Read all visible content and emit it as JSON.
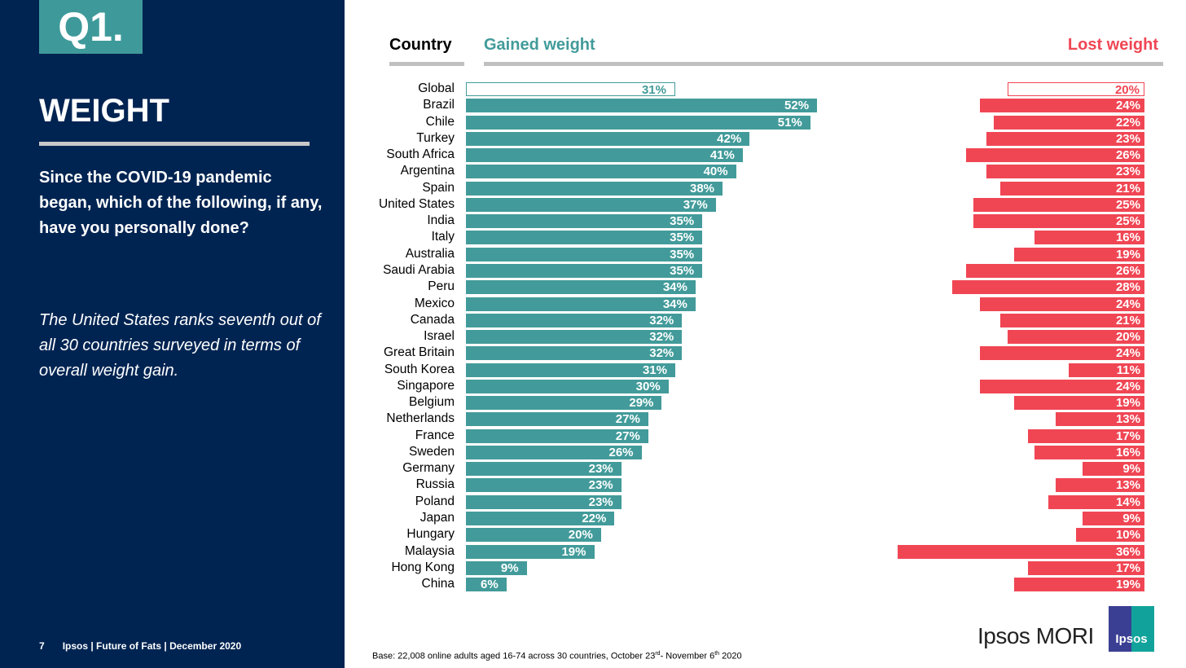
{
  "sidebar": {
    "badge": "Q1.",
    "title": "WEIGHT",
    "question": "Since the COVID-19 pandemic began, which of the following, if any, have you personally done?",
    "note": "The United States ranks seventh out of all 30 countries surveyed in terms of overall weight gain.",
    "footer": {
      "page": "7",
      "text": "Ipsos | Future of Fats | December 2020"
    }
  },
  "footer": {
    "base": "Base: 22,008 online adults aged 16-74 across 30 countries, October 23",
    "sup1": "rd",
    "mid": "- November 6",
    "sup2": "th",
    "end": " 2020",
    "logo_text": "Ipsos MORI",
    "logo_badge": "Ipsos"
  },
  "chart_data": {
    "type": "bar",
    "orientation": "horizontal",
    "colors": {
      "gained": "#429b9a",
      "lost": "#f04654"
    },
    "category_header": "Country",
    "categories": [
      "Global",
      "Brazil",
      "Chile",
      "Turkey",
      "South Africa",
      "Argentina",
      "Spain",
      "United States",
      "India",
      "Italy",
      "Australia",
      "Saudi Arabia",
      "Peru",
      "Mexico",
      "Canada",
      "Israel",
      "Great Britain",
      "South Korea",
      "Singapore",
      "Belgium",
      "Netherlands",
      "France",
      "Sweden",
      "Germany",
      "Russia",
      "Poland",
      "Japan",
      "Hungary",
      "Malaysia",
      "Hong Kong",
      "China"
    ],
    "series": [
      {
        "name": "Gained weight",
        "values": [
          31,
          52,
          51,
          42,
          41,
          40,
          38,
          37,
          35,
          35,
          35,
          35,
          34,
          34,
          32,
          32,
          32,
          31,
          30,
          29,
          27,
          27,
          26,
          23,
          23,
          23,
          22,
          20,
          19,
          9,
          6
        ]
      },
      {
        "name": "Lost weight",
        "values": [
          20,
          24,
          22,
          23,
          26,
          23,
          21,
          25,
          25,
          16,
          19,
          26,
          28,
          24,
          21,
          20,
          24,
          11,
          24,
          19,
          13,
          17,
          16,
          9,
          13,
          14,
          9,
          10,
          36,
          17,
          19
        ]
      }
    ],
    "unit": "%"
  }
}
